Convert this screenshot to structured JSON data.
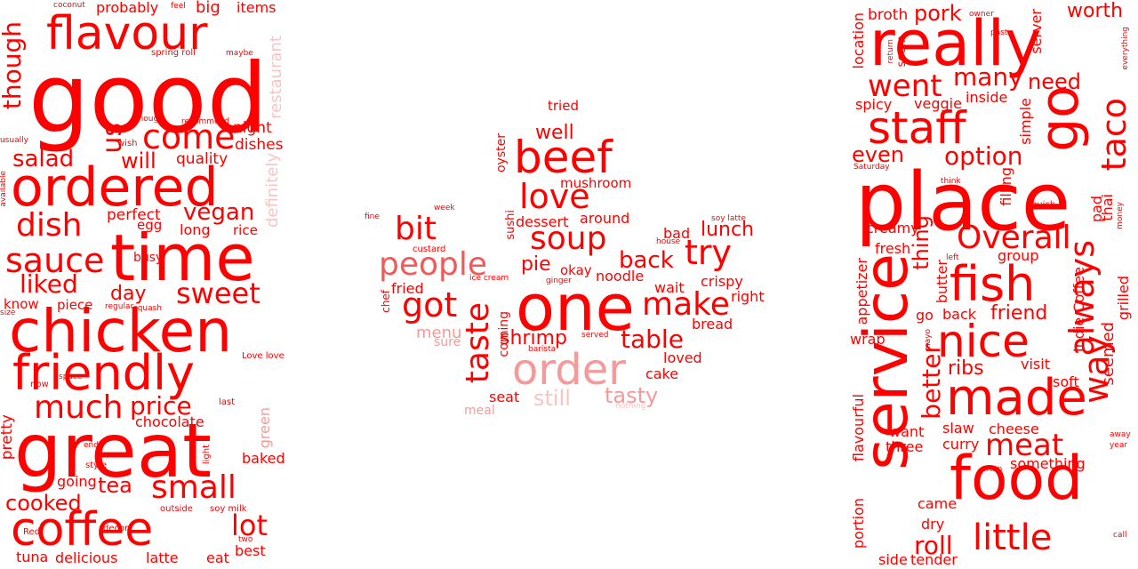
{
  "colors": {
    "primary": "#ff0000",
    "medium": "#f25a5a",
    "light": "#f59a9a",
    "faint": "#f8c4c4"
  },
  "clouds": [
    {
      "name": "left",
      "words": [
        {
          "text": "good",
          "color": "primary"
        },
        {
          "text": "flavour",
          "color": "primary"
        },
        {
          "text": "coconut",
          "color": "primary"
        },
        {
          "text": "probably",
          "color": "primary"
        },
        {
          "text": "feel",
          "color": "primary"
        },
        {
          "text": "big",
          "color": "primary"
        },
        {
          "text": "items",
          "color": "primary"
        },
        {
          "text": "though",
          "color": "primary"
        },
        {
          "text": "spring roll",
          "color": "primary"
        },
        {
          "text": "maybe",
          "color": "primary"
        },
        {
          "text": "restaurant",
          "color": "faint"
        },
        {
          "text": "enough",
          "color": "primary"
        },
        {
          "text": "recommend",
          "color": "primary"
        },
        {
          "text": "come",
          "color": "primary"
        },
        {
          "text": "night",
          "color": "primary"
        },
        {
          "text": "us",
          "color": "primary"
        },
        {
          "text": "usually",
          "color": "primary"
        },
        {
          "text": "wish",
          "color": "primary"
        },
        {
          "text": "dishes",
          "color": "primary"
        },
        {
          "text": "salad",
          "color": "primary"
        },
        {
          "text": "will",
          "color": "primary"
        },
        {
          "text": "quality",
          "color": "primary"
        },
        {
          "text": "available",
          "color": "primary"
        },
        {
          "text": "ordered",
          "color": "primary"
        },
        {
          "text": "definitely",
          "color": "faint"
        },
        {
          "text": "vegan",
          "color": "primary"
        },
        {
          "text": "dish",
          "color": "primary"
        },
        {
          "text": "perfect",
          "color": "primary"
        },
        {
          "text": "egg",
          "color": "primary"
        },
        {
          "text": "long",
          "color": "primary"
        },
        {
          "text": "rice",
          "color": "primary"
        },
        {
          "text": "time",
          "color": "primary"
        },
        {
          "text": "sauce",
          "color": "primary"
        },
        {
          "text": "busy",
          "color": "primary"
        },
        {
          "text": "liked",
          "color": "primary"
        },
        {
          "text": "sweet",
          "color": "primary"
        },
        {
          "text": "day",
          "color": "primary"
        },
        {
          "text": "know",
          "color": "primary"
        },
        {
          "text": "piece",
          "color": "primary"
        },
        {
          "text": "regular",
          "color": "primary"
        },
        {
          "text": "squash",
          "color": "primary"
        },
        {
          "text": "size",
          "color": "primary"
        },
        {
          "text": "chicken",
          "color": "primary"
        },
        {
          "text": "friendly",
          "color": "primary"
        },
        {
          "text": "Love love",
          "color": "primary"
        },
        {
          "text": "space",
          "color": "primary"
        },
        {
          "text": "now",
          "color": "primary"
        },
        {
          "text": "much",
          "color": "primary"
        },
        {
          "text": "price",
          "color": "primary"
        },
        {
          "text": "last",
          "color": "primary"
        },
        {
          "text": "pretty",
          "color": "primary"
        },
        {
          "text": "chocolate",
          "color": "primary"
        },
        {
          "text": "green",
          "color": "light"
        },
        {
          "text": "great",
          "color": "primary"
        },
        {
          "text": "end",
          "color": "primary"
        },
        {
          "text": "light",
          "color": "primary"
        },
        {
          "text": "baked",
          "color": "primary"
        },
        {
          "text": "style",
          "color": "primary"
        },
        {
          "text": "going",
          "color": "primary"
        },
        {
          "text": "tea",
          "color": "primary"
        },
        {
          "text": "small",
          "color": "primary"
        },
        {
          "text": "cooked",
          "color": "primary"
        },
        {
          "text": "outside",
          "color": "primary"
        },
        {
          "text": "soy milk",
          "color": "primary"
        },
        {
          "text": "coffee",
          "color": "primary"
        },
        {
          "text": "lot",
          "color": "primary"
        },
        {
          "text": "decor",
          "color": "primary"
        },
        {
          "text": "two",
          "color": "primary"
        },
        {
          "text": "Red",
          "color": "primary"
        },
        {
          "text": "best",
          "color": "primary"
        },
        {
          "text": "tuna",
          "color": "primary"
        },
        {
          "text": "delicious",
          "color": "primary"
        },
        {
          "text": "latte",
          "color": "primary"
        },
        {
          "text": "eat",
          "color": "primary"
        }
      ]
    },
    {
      "name": "middle",
      "words": [
        {
          "text": "tried",
          "color": "primary"
        },
        {
          "text": "well",
          "color": "primary"
        },
        {
          "text": "beef",
          "color": "primary"
        },
        {
          "text": "oyster",
          "color": "primary"
        },
        {
          "text": "mushroom",
          "color": "primary"
        },
        {
          "text": "love",
          "color": "primary"
        },
        {
          "text": "week",
          "color": "primary"
        },
        {
          "text": "fine",
          "color": "primary"
        },
        {
          "text": "sushi",
          "color": "primary"
        },
        {
          "text": "dessert",
          "color": "primary"
        },
        {
          "text": "around",
          "color": "primary"
        },
        {
          "text": "soy latte",
          "color": "primary"
        },
        {
          "text": "bit",
          "color": "primary"
        },
        {
          "text": "soup",
          "color": "primary"
        },
        {
          "text": "bad",
          "color": "primary"
        },
        {
          "text": "lunch",
          "color": "primary"
        },
        {
          "text": "house",
          "color": "primary"
        },
        {
          "text": "try",
          "color": "primary"
        },
        {
          "text": "people",
          "color": "medium"
        },
        {
          "text": "pie",
          "color": "primary"
        },
        {
          "text": "back",
          "color": "primary"
        },
        {
          "text": "custard",
          "color": "primary"
        },
        {
          "text": "okay",
          "color": "primary"
        },
        {
          "text": "ice cream",
          "color": "primary"
        },
        {
          "text": "ginger",
          "color": "primary"
        },
        {
          "text": "noodle",
          "color": "primary"
        },
        {
          "text": "crispy",
          "color": "primary"
        },
        {
          "text": "fried",
          "color": "primary"
        },
        {
          "text": "wait",
          "color": "primary"
        },
        {
          "text": "right",
          "color": "primary"
        },
        {
          "text": "chef",
          "color": "primary"
        },
        {
          "text": "got",
          "color": "primary"
        },
        {
          "text": "one",
          "color": "primary"
        },
        {
          "text": "coming",
          "color": "primary"
        },
        {
          "text": "make",
          "color": "primary"
        },
        {
          "text": "taste",
          "color": "primary"
        },
        {
          "text": "bread",
          "color": "primary"
        },
        {
          "text": "menu",
          "color": "light"
        },
        {
          "text": "shrimp",
          "color": "primary"
        },
        {
          "text": "served",
          "color": "primary"
        },
        {
          "text": "table",
          "color": "primary"
        },
        {
          "text": "sure",
          "color": "light"
        },
        {
          "text": "barista",
          "color": "primary"
        },
        {
          "text": "loved",
          "color": "primary"
        },
        {
          "text": "order",
          "color": "light"
        },
        {
          "text": "cake",
          "color": "primary"
        },
        {
          "text": "seat",
          "color": "primary"
        },
        {
          "text": "still",
          "color": "faint"
        },
        {
          "text": "tasty",
          "color": "light"
        },
        {
          "text": "meal",
          "color": "light"
        },
        {
          "text": "nothing",
          "color": "faint"
        }
      ]
    },
    {
      "name": "right",
      "words": [
        {
          "text": "broth",
          "color": "primary"
        },
        {
          "text": "pork",
          "color": "primary"
        },
        {
          "text": "owner",
          "color": "primary"
        },
        {
          "text": "worth",
          "color": "primary"
        },
        {
          "text": "really",
          "color": "primary"
        },
        {
          "text": "location",
          "color": "primary"
        },
        {
          "text": "seem",
          "color": "primary"
        },
        {
          "text": "return",
          "color": "primary"
        },
        {
          "text": "past",
          "color": "primary"
        },
        {
          "text": "server",
          "color": "primary"
        },
        {
          "text": "everything",
          "color": "primary"
        },
        {
          "text": "went",
          "color": "primary"
        },
        {
          "text": "many",
          "color": "primary"
        },
        {
          "text": "need",
          "color": "primary"
        },
        {
          "text": "go",
          "color": "primary"
        },
        {
          "text": "spicy",
          "color": "primary"
        },
        {
          "text": "veggie",
          "color": "primary"
        },
        {
          "text": "inside",
          "color": "primary"
        },
        {
          "text": "staff",
          "color": "primary"
        },
        {
          "text": "simple",
          "color": "primary"
        },
        {
          "text": "taco",
          "color": "primary"
        },
        {
          "text": "even",
          "color": "primary"
        },
        {
          "text": "option",
          "color": "primary"
        },
        {
          "text": "Saturday",
          "color": "primary"
        },
        {
          "text": "think",
          "color": "primary"
        },
        {
          "text": "place",
          "color": "primary"
        },
        {
          "text": "filling",
          "color": "primary"
        },
        {
          "text": "quick",
          "color": "primary"
        },
        {
          "text": "money",
          "color": "primary"
        },
        {
          "text": "creamy",
          "color": "primary"
        },
        {
          "text": "thai",
          "color": "primary"
        },
        {
          "text": "pad",
          "color": "primary"
        },
        {
          "text": "Overall",
          "color": "primary"
        },
        {
          "text": "fresh",
          "color": "primary"
        },
        {
          "text": "left",
          "color": "primary"
        },
        {
          "text": "group",
          "color": "primary"
        },
        {
          "text": "appetizer",
          "color": "primary"
        },
        {
          "text": "butter",
          "color": "primary"
        },
        {
          "text": "thing",
          "color": "primary"
        },
        {
          "text": "fish",
          "color": "primary"
        },
        {
          "text": "always",
          "color": "primary"
        },
        {
          "text": "grilled",
          "color": "primary"
        },
        {
          "text": "Indie Coffee",
          "color": "primary"
        },
        {
          "text": "service",
          "color": "primary"
        },
        {
          "text": "go",
          "color": "primary"
        },
        {
          "text": "back",
          "color": "primary"
        },
        {
          "text": "friend",
          "color": "primary"
        },
        {
          "text": "mayo",
          "color": "primary"
        },
        {
          "text": "wrap",
          "color": "primary"
        },
        {
          "text": "nice",
          "color": "primary"
        },
        {
          "text": "better",
          "color": "primary"
        },
        {
          "text": "ribs",
          "color": "primary"
        },
        {
          "text": "visit",
          "color": "primary"
        },
        {
          "text": "seemed",
          "color": "primary"
        },
        {
          "text": "way",
          "color": "primary"
        },
        {
          "text": "made",
          "color": "primary"
        },
        {
          "text": "soft",
          "color": "primary"
        },
        {
          "text": "want",
          "color": "primary"
        },
        {
          "text": "slaw",
          "color": "primary"
        },
        {
          "text": "cheese",
          "color": "primary"
        },
        {
          "text": "flavourful",
          "color": "primary"
        },
        {
          "text": "away",
          "color": "primary"
        },
        {
          "text": "year",
          "color": "primary"
        },
        {
          "text": "three",
          "color": "primary"
        },
        {
          "text": "curry",
          "color": "primary"
        },
        {
          "text": "meat",
          "color": "primary"
        },
        {
          "text": "often",
          "color": "primary"
        },
        {
          "text": "something",
          "color": "primary"
        },
        {
          "text": "food",
          "color": "primary"
        },
        {
          "text": "portion",
          "color": "primary"
        },
        {
          "text": "came",
          "color": "primary"
        },
        {
          "text": "dry",
          "color": "primary"
        },
        {
          "text": "call",
          "color": "primary"
        },
        {
          "text": "little",
          "color": "primary"
        },
        {
          "text": "roll",
          "color": "primary"
        },
        {
          "text": "side",
          "color": "primary"
        },
        {
          "text": "tender",
          "color": "primary"
        }
      ]
    }
  ]
}
